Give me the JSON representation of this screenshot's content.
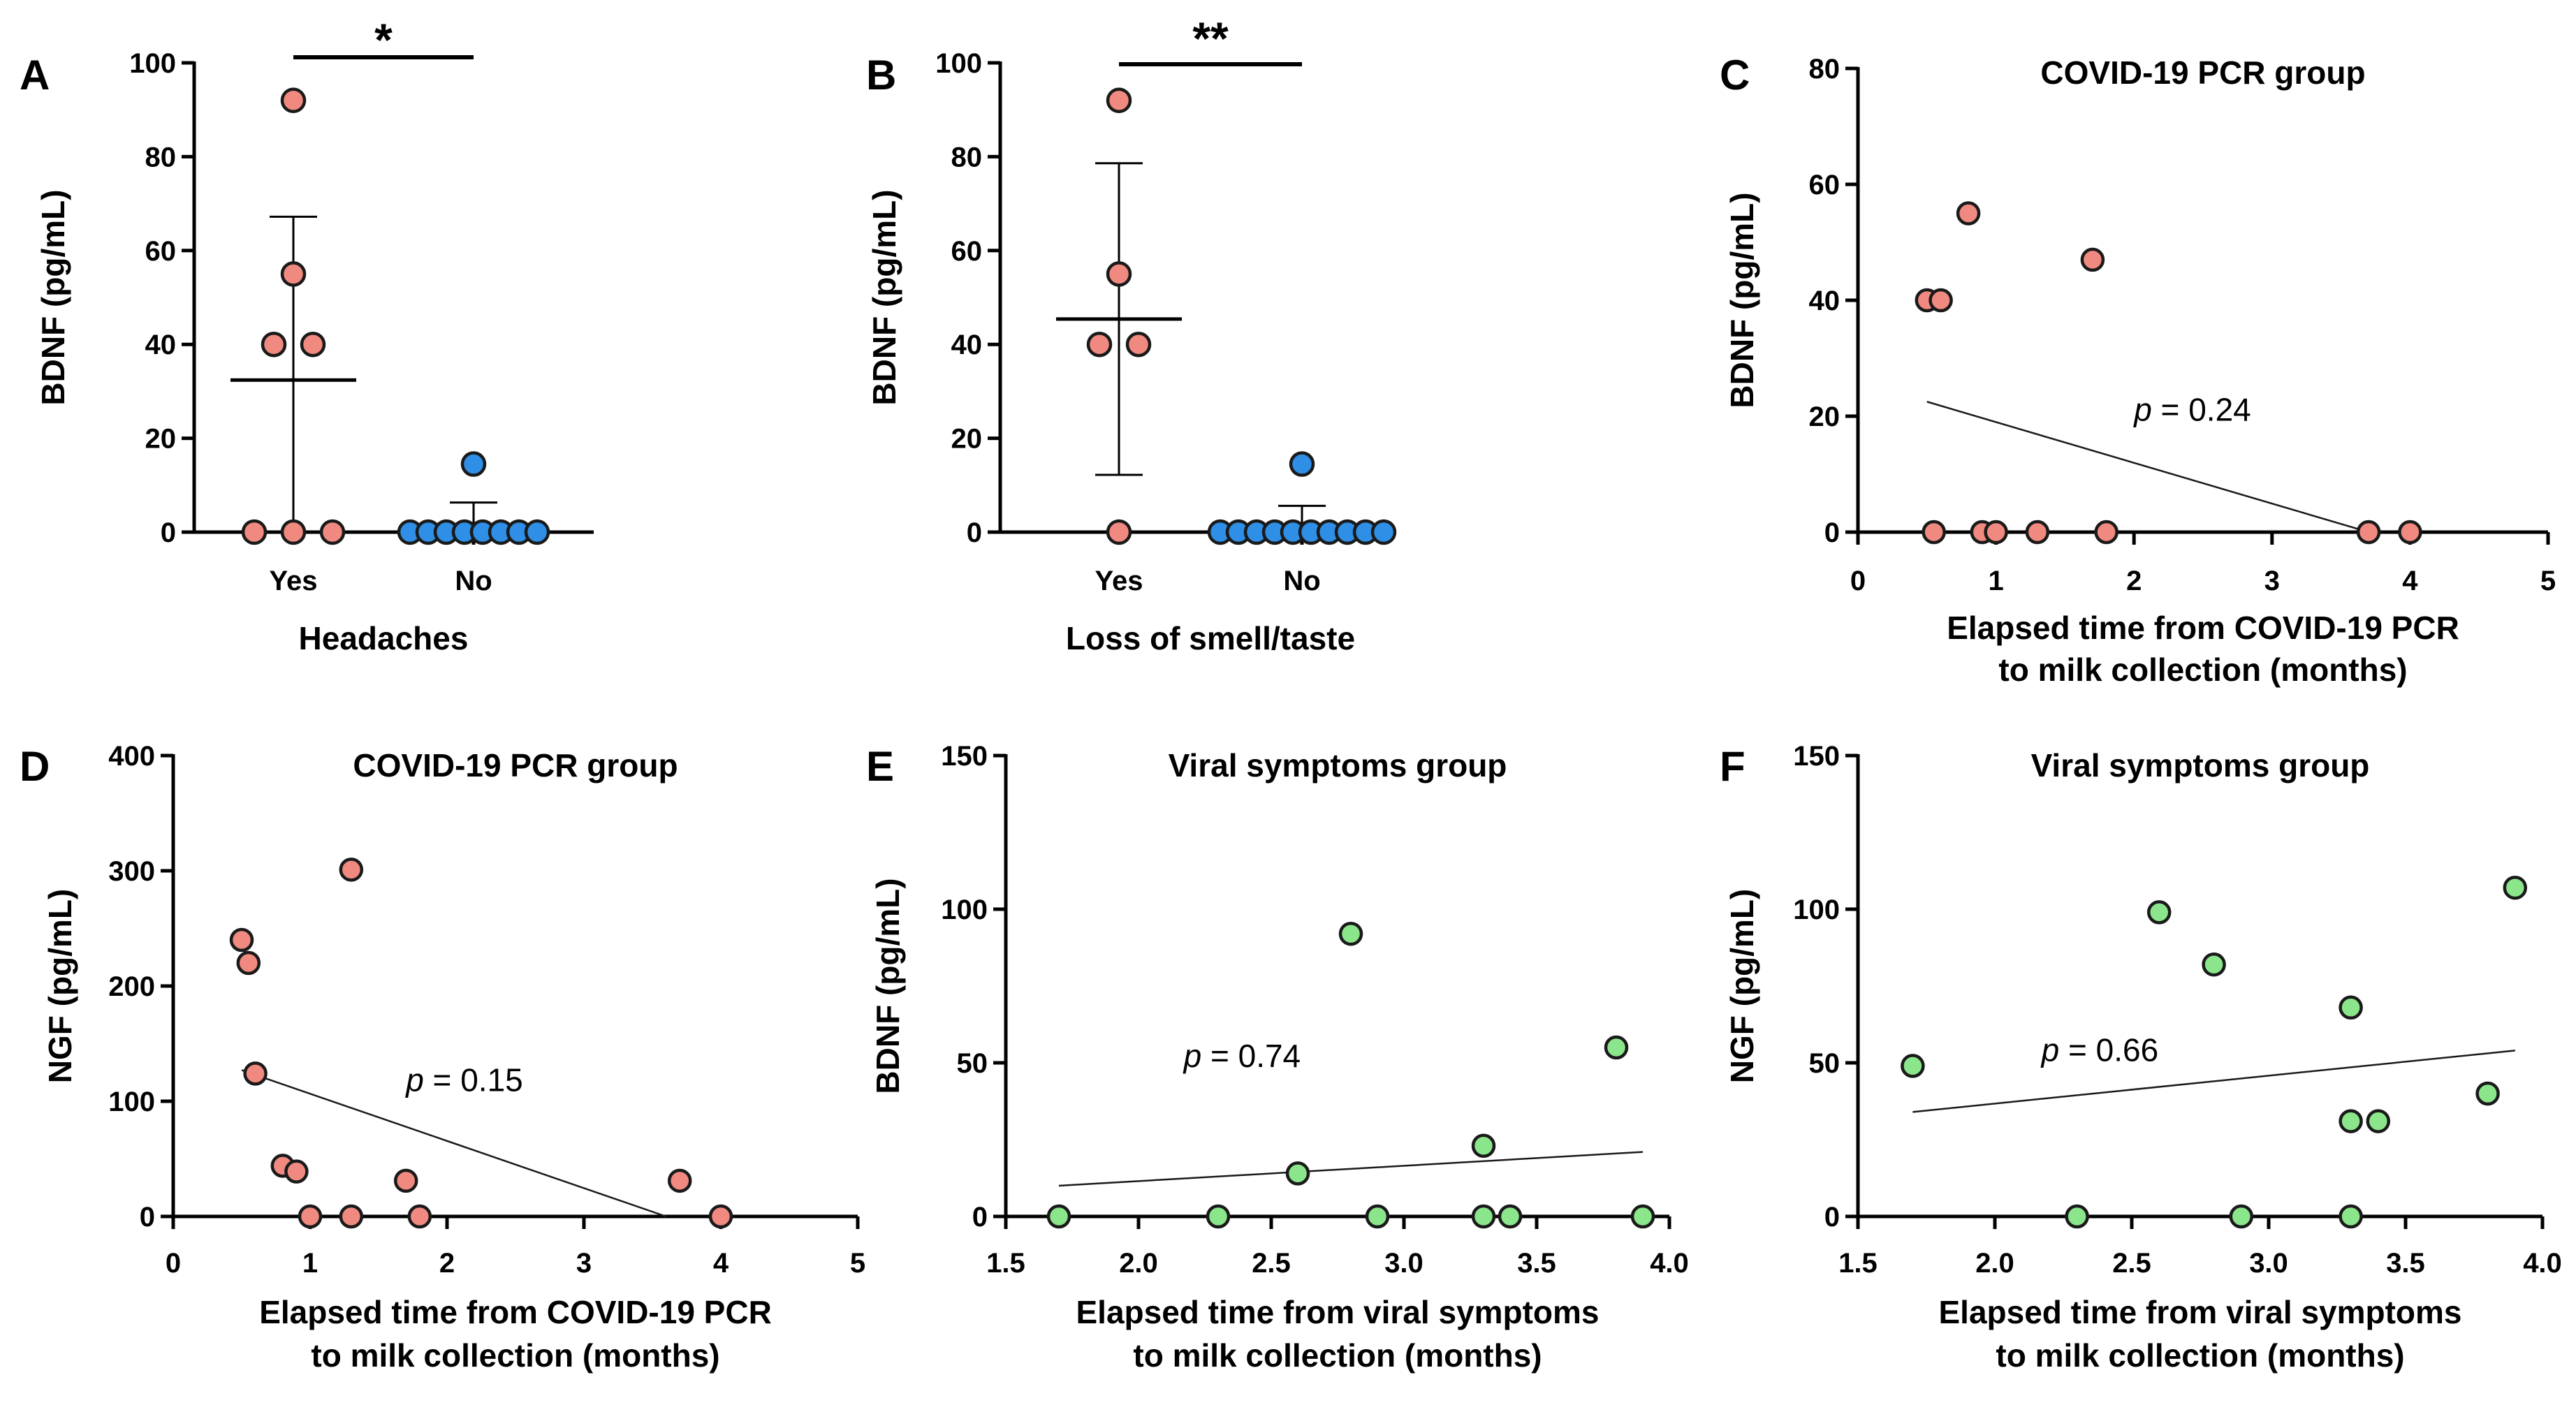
{
  "colors": {
    "covid": "#f08a80",
    "no_group": "#2f8fe6",
    "viral": "#8be58b",
    "axis": "#000000"
  },
  "chart_data": [
    {
      "id": "A",
      "type": "scatter",
      "panel_label": "A",
      "title": "",
      "xlabel": "Headaches",
      "ylabel": "BDNF (pg/mL)",
      "categories": [
        "Yes",
        "No"
      ],
      "ylim": [
        0,
        100
      ],
      "yticks": [
        "0",
        "20",
        "40",
        "60",
        "80",
        "100"
      ],
      "significance": "*",
      "zero_line": true,
      "groups": [
        {
          "name": "Yes",
          "color_key": "covid",
          "values": [
            0,
            0,
            0,
            40,
            40,
            55,
            92
          ],
          "mean": 32.4,
          "sd_low": 0,
          "sd_high": 67.2
        },
        {
          "name": "No",
          "color_key": "no_group",
          "values": [
            0,
            0,
            0,
            0,
            0,
            0,
            0,
            0,
            14.5
          ],
          "mean": 1.6,
          "sd_low": 0,
          "sd_high": 6.3
        }
      ]
    },
    {
      "id": "B",
      "type": "scatter",
      "panel_label": "B",
      "title": "",
      "xlabel": "Loss of smell/taste",
      "ylabel": "BDNF (pg/mL)",
      "categories": [
        "Yes",
        "No"
      ],
      "ylim": [
        0,
        100
      ],
      "yticks": [
        "0",
        "20",
        "40",
        "60",
        "80",
        "100"
      ],
      "significance": "**",
      "zero_line": false,
      "groups": [
        {
          "name": "Yes",
          "color_key": "covid",
          "values": [
            0,
            40,
            40,
            55,
            92
          ],
          "mean": 45.4,
          "sd_low": 12.2,
          "sd_high": 78.6
        },
        {
          "name": "No",
          "color_key": "no_group",
          "values": [
            0,
            0,
            0,
            0,
            0,
            0,
            0,
            0,
            0,
            0,
            14.5
          ],
          "mean": 1.3,
          "sd_low": 0,
          "sd_high": 5.6
        }
      ]
    },
    {
      "id": "C",
      "type": "scatter",
      "panel_label": "C",
      "title": "COVID-19 PCR group",
      "xlabel": "Elapsed time from COVID-19 PCR",
      "xlabel2": "to milk collection (months)",
      "ylabel": "BDNF (pg/mL)",
      "xlim": [
        0,
        5
      ],
      "ylim": [
        0,
        80
      ],
      "xticks": [
        "0",
        "1",
        "2",
        "3",
        "4",
        "5"
      ],
      "yticks": [
        "0",
        "20",
        "40",
        "60",
        "80"
      ],
      "color_key": "covid",
      "points": [
        {
          "x": 0.5,
          "y": 40
        },
        {
          "x": 0.6,
          "y": 40
        },
        {
          "x": 0.8,
          "y": 55
        },
        {
          "x": 1.7,
          "y": 47
        },
        {
          "x": 0.55,
          "y": 0
        },
        {
          "x": 0.9,
          "y": 0
        },
        {
          "x": 1.0,
          "y": 0
        },
        {
          "x": 1.3,
          "y": 0
        },
        {
          "x": 1.8,
          "y": 0
        },
        {
          "x": 3.7,
          "y": 0
        },
        {
          "x": 4.0,
          "y": 0
        }
      ],
      "fit": {
        "x": [
          0.5,
          3.7
        ],
        "y": [
          22.5,
          0
        ]
      },
      "p_prefix": "p",
      "p_text": " = 0.24",
      "p_pos": {
        "x": 2.0,
        "y": 21
      }
    },
    {
      "id": "D",
      "type": "scatter",
      "panel_label": "D",
      "title": "COVID-19 PCR group",
      "xlabel": "Elapsed time from COVID-19 PCR",
      "xlabel2": "to milk collection (months)",
      "ylabel": "NGF (pg/mL)",
      "xlim": [
        0,
        5
      ],
      "ylim": [
        0,
        400
      ],
      "xticks": [
        "0",
        "1",
        "2",
        "3",
        "4",
        "5"
      ],
      "yticks": [
        "0",
        "100",
        "200",
        "300",
        "400"
      ],
      "color_key": "covid",
      "points": [
        {
          "x": 0.5,
          "y": 240
        },
        {
          "x": 0.55,
          "y": 220
        },
        {
          "x": 0.6,
          "y": 124
        },
        {
          "x": 1.3,
          "y": 301
        },
        {
          "x": 0.8,
          "y": 44
        },
        {
          "x": 0.9,
          "y": 39
        },
        {
          "x": 1.0,
          "y": 0
        },
        {
          "x": 1.3,
          "y": 0
        },
        {
          "x": 1.7,
          "y": 31
        },
        {
          "x": 1.8,
          "y": 0
        },
        {
          "x": 3.7,
          "y": 31
        },
        {
          "x": 4.0,
          "y": 0
        }
      ],
      "fit": {
        "x": [
          0.5,
          3.6
        ],
        "y": [
          127,
          0
        ]
      },
      "p_prefix": "p",
      "p_text": " = 0.15",
      "p_pos": {
        "x": 1.7,
        "y": 118
      }
    },
    {
      "id": "E",
      "type": "scatter",
      "panel_label": "E",
      "title": "Viral symptoms group",
      "xlabel": "Elapsed time from viral symptoms",
      "xlabel2": "to milk collection (months)",
      "ylabel": "BDNF (pg/mL)",
      "xlim": [
        1.5,
        4.0
      ],
      "ylim": [
        0,
        150
      ],
      "xticks": [
        "1.5",
        "2.0",
        "2.5",
        "3.0",
        "3.5",
        "4.0"
      ],
      "yticks": [
        "0",
        "50",
        "100",
        "150"
      ],
      "color_key": "viral",
      "points": [
        {
          "x": 1.7,
          "y": 0
        },
        {
          "x": 2.3,
          "y": 0
        },
        {
          "x": 2.6,
          "y": 14
        },
        {
          "x": 2.8,
          "y": 92
        },
        {
          "x": 2.9,
          "y": 0
        },
        {
          "x": 3.3,
          "y": 23
        },
        {
          "x": 3.3,
          "y": 0
        },
        {
          "x": 3.4,
          "y": 0
        },
        {
          "x": 3.8,
          "y": 55
        },
        {
          "x": 3.9,
          "y": 0
        }
      ],
      "fit": {
        "x": [
          1.7,
          3.9
        ],
        "y": [
          10,
          21
        ]
      },
      "p_prefix": "p",
      "p_text": " = 0.74",
      "p_pos": {
        "x": 2.17,
        "y": 52
      }
    },
    {
      "id": "F",
      "type": "scatter",
      "panel_label": "F",
      "title": "Viral symptoms group",
      "xlabel": "Elapsed time from viral symptoms",
      "xlabel2": "to milk collection (months)",
      "ylabel": "NGF (pg/mL)",
      "xlim": [
        1.5,
        4.0
      ],
      "ylim": [
        0,
        150
      ],
      "xticks": [
        "1.5",
        "2.0",
        "2.5",
        "3.0",
        "3.5",
        "4.0"
      ],
      "yticks": [
        "0",
        "50",
        "100",
        "150"
      ],
      "color_key": "viral",
      "points": [
        {
          "x": 1.7,
          "y": 49
        },
        {
          "x": 2.3,
          "y": 0
        },
        {
          "x": 2.6,
          "y": 99
        },
        {
          "x": 2.8,
          "y": 82
        },
        {
          "x": 2.9,
          "y": 0
        },
        {
          "x": 3.3,
          "y": 68
        },
        {
          "x": 3.3,
          "y": 31
        },
        {
          "x": 3.3,
          "y": 0
        },
        {
          "x": 3.4,
          "y": 31
        },
        {
          "x": 3.8,
          "y": 40
        },
        {
          "x": 3.9,
          "y": 107
        }
      ],
      "fit": {
        "x": [
          1.7,
          3.9
        ],
        "y": [
          34,
          54
        ]
      },
      "p_prefix": "p",
      "p_text": " = 0.66",
      "p_pos": {
        "x": 2.17,
        "y": 54
      }
    }
  ]
}
